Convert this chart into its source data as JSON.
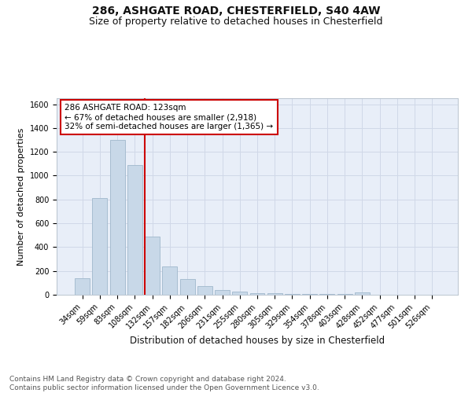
{
  "title1": "286, ASHGATE ROAD, CHESTERFIELD, S40 4AW",
  "title2": "Size of property relative to detached houses in Chesterfield",
  "xlabel": "Distribution of detached houses by size in Chesterfield",
  "ylabel": "Number of detached properties",
  "categories": [
    "34sqm",
    "59sqm",
    "83sqm",
    "108sqm",
    "132sqm",
    "157sqm",
    "182sqm",
    "206sqm",
    "231sqm",
    "255sqm",
    "280sqm",
    "305sqm",
    "329sqm",
    "354sqm",
    "378sqm",
    "403sqm",
    "428sqm",
    "452sqm",
    "477sqm",
    "501sqm",
    "526sqm"
  ],
  "values": [
    140,
    810,
    1300,
    1090,
    490,
    235,
    135,
    72,
    40,
    25,
    15,
    10,
    8,
    5,
    5,
    5,
    18,
    0,
    0,
    0,
    0
  ],
  "bar_color": "#c8d8e8",
  "bar_edge_color": "#a0b8cc",
  "red_line_index": 4,
  "annotation_text": "286 ASHGATE ROAD: 123sqm\n← 67% of detached houses are smaller (2,918)\n32% of semi-detached houses are larger (1,365) →",
  "annotation_box_color": "#ffffff",
  "annotation_box_edge": "#cc0000",
  "red_line_color": "#cc0000",
  "ylim": [
    0,
    1650
  ],
  "yticks": [
    0,
    200,
    400,
    600,
    800,
    1000,
    1200,
    1400,
    1600
  ],
  "grid_color": "#d0d8e8",
  "bg_color": "#e8eef8",
  "footer": "Contains HM Land Registry data © Crown copyright and database right 2024.\nContains public sector information licensed under the Open Government Licence v3.0.",
  "title1_fontsize": 10,
  "title2_fontsize": 9,
  "annotation_fontsize": 7.5,
  "footer_fontsize": 6.5,
  "ylabel_fontsize": 8,
  "xlabel_fontsize": 8.5,
  "tick_fontsize": 7
}
